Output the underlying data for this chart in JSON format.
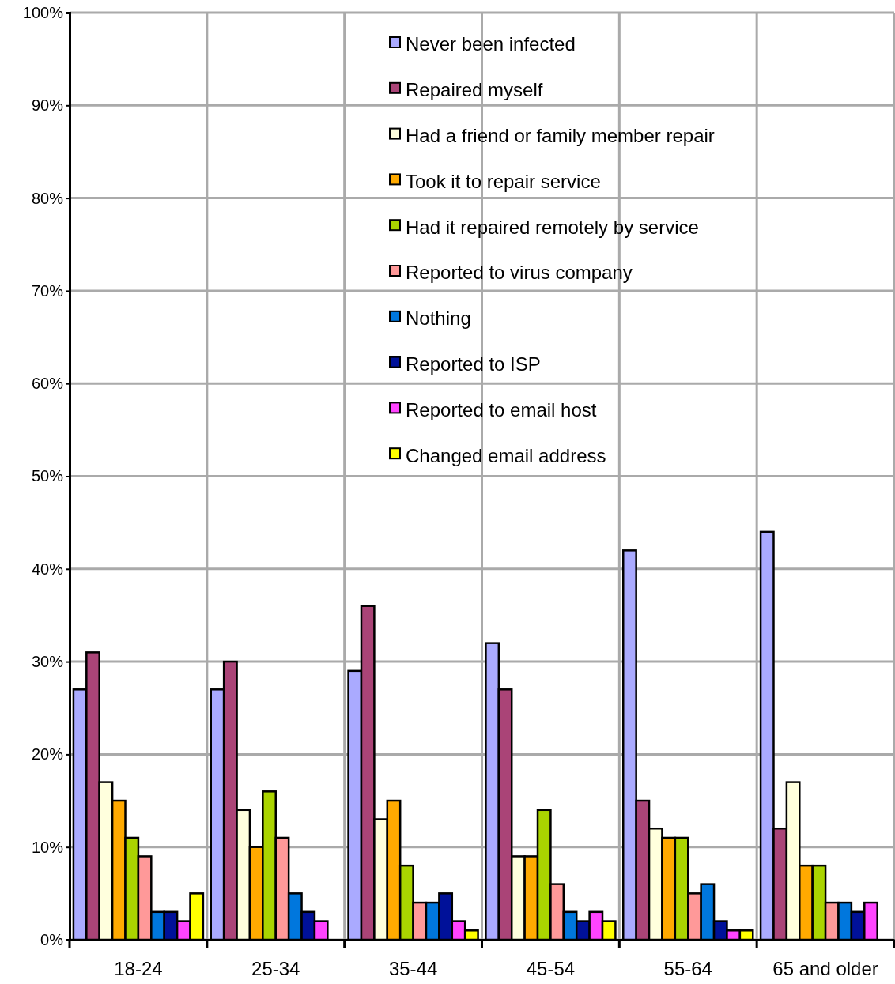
{
  "chart_data": {
    "type": "bar",
    "categories": [
      "18-24",
      "25-34",
      "35-44",
      "45-54",
      "55-64",
      "65 and older"
    ],
    "series": [
      {
        "name": "Never been infected",
        "color": "#aaaaff",
        "values": [
          27,
          27,
          29,
          32,
          42,
          44
        ]
      },
      {
        "name": "Repaired myself",
        "color": "#aa4477",
        "values": [
          31,
          30,
          36,
          27,
          15,
          12
        ]
      },
      {
        "name": "Had a friend or family member repair",
        "color": "#ffffdd",
        "values": [
          17,
          14,
          13,
          9,
          12,
          17
        ]
      },
      {
        "name": "Took it to repair service",
        "color": "#ffaa00",
        "values": [
          15,
          10,
          15,
          9,
          11,
          8
        ]
      },
      {
        "name": "Had it repaired remotely by service",
        "color": "#aad400",
        "values": [
          11,
          16,
          8,
          14,
          11,
          8
        ]
      },
      {
        "name": "Reported to virus company",
        "color": "#ff9999",
        "values": [
          9,
          11,
          4,
          6,
          5,
          4
        ]
      },
      {
        "name": "Nothing",
        "color": "#0077dd",
        "values": [
          3,
          5,
          4,
          3,
          6,
          4
        ]
      },
      {
        "name": "Reported to ISP",
        "color": "#001199",
        "values": [
          3,
          3,
          5,
          2,
          2,
          3
        ]
      },
      {
        "name": "Reported to email host",
        "color": "#ff44ff",
        "values": [
          2,
          2,
          2,
          3,
          1,
          4
        ]
      },
      {
        "name": "Changed email address",
        "color": "#ffff00",
        "values": [
          5,
          0,
          1,
          2,
          1,
          0
        ]
      }
    ],
    "ylim": [
      0,
      100
    ],
    "yticks": [
      {
        "value": 0,
        "label": "0%"
      },
      {
        "value": 10,
        "label": "10%"
      },
      {
        "value": 20,
        "label": "20%"
      },
      {
        "value": 30,
        "label": "30%"
      },
      {
        "value": 40,
        "label": "40%"
      },
      {
        "value": 50,
        "label": "50%"
      },
      {
        "value": 60,
        "label": "60%"
      },
      {
        "value": 70,
        "label": "70%"
      },
      {
        "value": 80,
        "label": "80%"
      },
      {
        "value": 90,
        "label": "90%"
      },
      {
        "value": 100,
        "label": "100%"
      }
    ],
    "grid": true,
    "legend": "top"
  }
}
